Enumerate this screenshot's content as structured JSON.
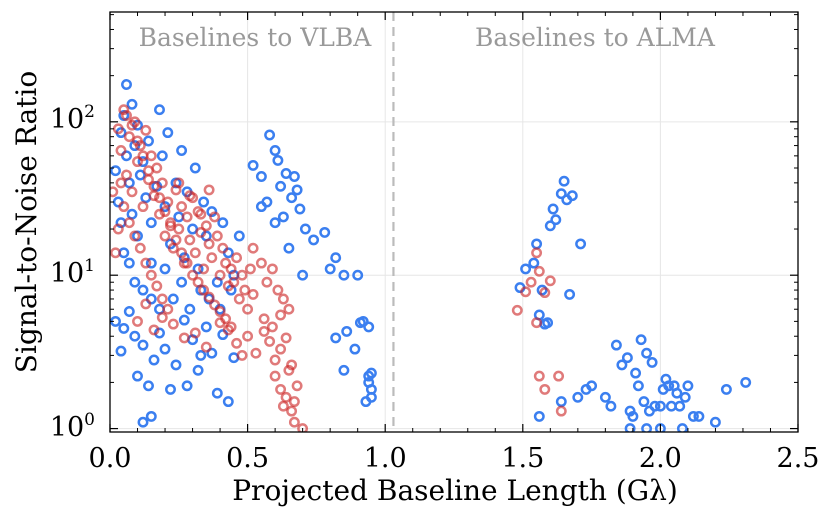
{
  "chart_data": {
    "type": "scatter",
    "xlabel": "Projected Baseline Length (Gλ)",
    "ylabel": "Signal-to-Noise Ratio",
    "xlim": [
      0.0,
      2.5
    ],
    "ylim": [
      0.95,
      520
    ],
    "yscale": "log",
    "x_ticks": [
      0.0,
      0.5,
      1.0,
      1.5,
      2.0,
      2.5
    ],
    "x_tick_labels": [
      "0.0",
      "0.5",
      "1.0",
      "1.5",
      "2.0",
      "2.5"
    ],
    "y_ticks": [
      1,
      10,
      100
    ],
    "y_tick_labels": [
      "10",
      "10",
      "10"
    ],
    "y_tick_exponents": [
      "0",
      "1",
      "2"
    ],
    "grid": true,
    "divider_x": 1.03,
    "region_labels": [
      "Baselines to VLBA",
      "Baselines to ALMA"
    ],
    "series": [
      {
        "name": "blue",
        "color": "#3b7ff0",
        "points": [
          [
            0.02,
            48
          ],
          [
            0.03,
            30
          ],
          [
            0.04,
            85
          ],
          [
            0.05,
            110
          ],
          [
            0.06,
            175
          ],
          [
            0.06,
            60
          ],
          [
            0.07,
            40
          ],
          [
            0.08,
            130
          ],
          [
            0.08,
            25
          ],
          [
            0.09,
            70
          ],
          [
            0.1,
            95
          ],
          [
            0.1,
            18
          ],
          [
            0.11,
            45
          ],
          [
            0.12,
            55
          ],
          [
            0.13,
            32
          ],
          [
            0.14,
            75
          ],
          [
            0.15,
            22
          ],
          [
            0.15,
            12
          ],
          [
            0.17,
            38
          ],
          [
            0.18,
            120
          ],
          [
            0.19,
            60
          ],
          [
            0.2,
            28
          ],
          [
            0.21,
            85
          ],
          [
            0.22,
            16
          ],
          [
            0.24,
            40
          ],
          [
            0.25,
            24
          ],
          [
            0.26,
            65
          ],
          [
            0.27,
            13
          ],
          [
            0.28,
            35
          ],
          [
            0.3,
            20
          ],
          [
            0.31,
            50
          ],
          [
            0.32,
            11
          ],
          [
            0.34,
            30
          ],
          [
            0.35,
            18
          ],
          [
            0.37,
            26
          ],
          [
            0.39,
            9
          ],
          [
            0.41,
            22
          ],
          [
            0.43,
            14
          ],
          [
            0.45,
            10
          ],
          [
            0.47,
            18
          ],
          [
            0.04,
            22
          ],
          [
            0.05,
            14
          ],
          [
            0.07,
            12
          ],
          [
            0.09,
            9
          ],
          [
            0.12,
            8
          ],
          [
            0.15,
            7
          ],
          [
            0.18,
            6
          ],
          [
            0.2,
            11
          ],
          [
            0.23,
            7
          ],
          [
            0.26,
            9
          ],
          [
            0.29,
            6
          ],
          [
            0.33,
            8
          ],
          [
            0.36,
            7
          ],
          [
            0.4,
            6
          ],
          [
            0.44,
            8
          ],
          [
            0.02,
            5
          ],
          [
            0.04,
            3.2
          ],
          [
            0.05,
            4.5
          ],
          [
            0.07,
            5.8
          ],
          [
            0.09,
            4
          ],
          [
            0.1,
            2.2
          ],
          [
            0.12,
            3.5
          ],
          [
            0.14,
            1.9
          ],
          [
            0.15,
            1.2
          ],
          [
            0.16,
            2.8
          ],
          [
            0.18,
            4.2
          ],
          [
            0.2,
            3.3
          ],
          [
            0.22,
            1.8
          ],
          [
            0.24,
            2.6
          ],
          [
            0.27,
            5.1
          ],
          [
            0.28,
            1.9
          ],
          [
            0.3,
            3.8
          ],
          [
            0.32,
            2.4
          ],
          [
            0.35,
            4.6
          ],
          [
            0.37,
            3.1
          ],
          [
            0.39,
            1.7
          ],
          [
            0.41,
            4.1
          ],
          [
            0.43,
            1.5
          ],
          [
            0.45,
            2.9
          ],
          [
            0.12,
            1.1
          ],
          [
            0.33,
            3.0
          ],
          [
            0.52,
            52
          ],
          [
            0.55,
            44
          ],
          [
            0.57,
            30
          ],
          [
            0.58,
            82
          ],
          [
            0.6,
            65
          ],
          [
            0.61,
            56
          ],
          [
            0.62,
            38
          ],
          [
            0.63,
            24
          ],
          [
            0.64,
            46
          ],
          [
            0.65,
            15
          ],
          [
            0.66,
            32
          ],
          [
            0.67,
            44
          ],
          [
            0.68,
            36
          ],
          [
            0.69,
            27
          ],
          [
            0.7,
            10
          ],
          [
            0.71,
            20
          ],
          [
            0.74,
            17
          ],
          [
            0.78,
            19
          ],
          [
            0.8,
            11
          ],
          [
            0.85,
            10
          ],
          [
            0.9,
            10
          ],
          [
            0.82,
            13
          ],
          [
            0.55,
            28
          ],
          [
            0.6,
            22
          ],
          [
            0.82,
            3.9
          ],
          [
            0.86,
            4.3
          ],
          [
            0.89,
            3.3
          ],
          [
            0.91,
            4.9
          ],
          [
            0.92,
            5.0
          ],
          [
            0.93,
            1.5
          ],
          [
            0.94,
            4.6
          ],
          [
            0.94,
            2.2
          ],
          [
            0.95,
            2.3
          ],
          [
            0.95,
            1.8
          ],
          [
            0.95,
            1.6
          ],
          [
            0.94,
            2.0
          ],
          [
            0.85,
            2.4
          ],
          [
            1.49,
            8.3
          ],
          [
            1.51,
            11
          ],
          [
            1.54,
            12
          ],
          [
            1.55,
            16
          ],
          [
            1.56,
            5.5
          ],
          [
            1.57,
            8
          ],
          [
            1.58,
            4.8
          ],
          [
            1.59,
            4.9
          ],
          [
            1.6,
            21
          ],
          [
            1.61,
            27
          ],
          [
            1.62,
            23
          ],
          [
            1.64,
            34
          ],
          [
            1.65,
            41
          ],
          [
            1.66,
            31
          ],
          [
            1.67,
            7.5
          ],
          [
            1.68,
            33
          ],
          [
            1.71,
            16
          ],
          [
            1.56,
            1.2
          ],
          [
            1.64,
            1.5
          ],
          [
            1.7,
            1.6
          ],
          [
            1.73,
            1.8
          ],
          [
            1.75,
            1.9
          ],
          [
            1.8,
            1.6
          ],
          [
            1.82,
            1.4
          ],
          [
            1.84,
            3.5
          ],
          [
            1.86,
            2.6
          ],
          [
            1.88,
            2.9
          ],
          [
            1.89,
            1.3
          ],
          [
            1.9,
            1.2
          ],
          [
            1.91,
            2.3
          ],
          [
            1.92,
            1.9
          ],
          [
            1.93,
            3.8
          ],
          [
            1.94,
            1.5
          ],
          [
            1.95,
            3.1
          ],
          [
            1.96,
            1.3
          ],
          [
            1.97,
            2.7
          ],
          [
            1.98,
            1.4
          ],
          [
            2.0,
            1.4
          ],
          [
            2.01,
            1.8
          ],
          [
            2.02,
            2.1
          ],
          [
            2.03,
            1.9
          ],
          [
            2.04,
            1.4
          ],
          [
            2.05,
            1.9
          ],
          [
            2.06,
            1.7
          ],
          [
            2.07,
            1.4
          ],
          [
            2.09,
            1.6
          ],
          [
            2.1,
            1.9
          ],
          [
            2.12,
            1.2
          ],
          [
            2.14,
            1.2
          ],
          [
            2.2,
            1.1
          ],
          [
            2.24,
            1.8
          ],
          [
            2.31,
            2.0
          ],
          [
            1.89,
            1.0
          ],
          [
            2.0,
            1.0
          ],
          [
            2.08,
            1.0
          ],
          [
            1.95,
            1.0
          ]
        ]
      },
      {
        "name": "red",
        "color": "#cc2222",
        "points": [
          [
            0.03,
            90
          ],
          [
            0.04,
            65
          ],
          [
            0.05,
            120
          ],
          [
            0.06,
            45
          ],
          [
            0.07,
            80
          ],
          [
            0.08,
            35
          ],
          [
            0.09,
            100
          ],
          [
            0.1,
            55
          ],
          [
            0.11,
            70
          ],
          [
            0.12,
            28
          ],
          [
            0.13,
            88
          ],
          [
            0.14,
            42
          ],
          [
            0.15,
            60
          ],
          [
            0.16,
            33
          ],
          [
            0.17,
            50
          ],
          [
            0.18,
            25
          ],
          [
            0.19,
            40
          ],
          [
            0.2,
            18
          ],
          [
            0.21,
            30
          ],
          [
            0.22,
            22
          ],
          [
            0.23,
            15
          ],
          [
            0.24,
            36
          ],
          [
            0.25,
            20
          ],
          [
            0.26,
            28
          ],
          [
            0.27,
            12
          ],
          [
            0.28,
            24
          ],
          [
            0.29,
            17
          ],
          [
            0.3,
            32
          ],
          [
            0.31,
            14
          ],
          [
            0.32,
            26
          ],
          [
            0.33,
            19
          ],
          [
            0.34,
            11
          ],
          [
            0.35,
            21
          ],
          [
            0.36,
            16
          ],
          [
            0.37,
            13
          ],
          [
            0.38,
            24
          ],
          [
            0.39,
            18
          ],
          [
            0.4,
            10
          ],
          [
            0.41,
            15
          ],
          [
            0.42,
            12
          ],
          [
            0.43,
            8.5
          ],
          [
            0.44,
            11
          ],
          [
            0.45,
            9
          ],
          [
            0.46,
            13
          ],
          [
            0.47,
            7
          ],
          [
            0.48,
            10
          ],
          [
            0.49,
            8
          ],
          [
            0.5,
            6
          ],
          [
            0.51,
            11
          ],
          [
            0.52,
            7.5
          ],
          [
            0.06,
            110
          ],
          [
            0.08,
            95
          ],
          [
            0.1,
            75
          ],
          [
            0.12,
            60
          ],
          [
            0.14,
            48
          ],
          [
            0.16,
            38
          ],
          [
            0.18,
            32
          ],
          [
            0.2,
            26
          ],
          [
            0.22,
            21
          ],
          [
            0.24,
            17
          ],
          [
            0.26,
            14
          ],
          [
            0.28,
            12
          ],
          [
            0.3,
            10
          ],
          [
            0.32,
            9
          ],
          [
            0.34,
            8
          ],
          [
            0.36,
            7.2
          ],
          [
            0.38,
            6.4
          ],
          [
            0.4,
            5.8
          ],
          [
            0.42,
            5.2
          ],
          [
            0.44,
            4.6
          ],
          [
            0.04,
            40
          ],
          [
            0.05,
            28
          ],
          [
            0.07,
            22
          ],
          [
            0.09,
            18
          ],
          [
            0.11,
            15
          ],
          [
            0.13,
            12
          ],
          [
            0.15,
            10
          ],
          [
            0.17,
            8.5
          ],
          [
            0.19,
            7
          ],
          [
            0.21,
            6
          ],
          [
            0.1,
            5
          ],
          [
            0.13,
            6.5
          ],
          [
            0.16,
            4.4
          ],
          [
            0.19,
            5.3
          ],
          [
            0.23,
            4.8
          ],
          [
            0.27,
            3.9
          ],
          [
            0.31,
            4.2
          ],
          [
            0.35,
            3.4
          ],
          [
            0.4,
            4.9
          ],
          [
            0.43,
            4.4
          ],
          [
            0.46,
            3.6
          ],
          [
            0.48,
            3.0
          ],
          [
            0.5,
            4.0
          ],
          [
            0.53,
            3.1
          ],
          [
            0.56,
            4.3
          ],
          [
            0.58,
            3.7
          ],
          [
            0.6,
            2.8
          ],
          [
            0.62,
            3.3
          ],
          [
            0.64,
            3.9
          ],
          [
            0.66,
            2.6
          ],
          [
            0.6,
            2.2
          ],
          [
            0.62,
            1.8
          ],
          [
            0.64,
            1.6
          ],
          [
            0.65,
            2.4
          ],
          [
            0.66,
            1.3
          ],
          [
            0.67,
            1.1
          ],
          [
            0.68,
            1.9
          ],
          [
            0.63,
            1.4
          ],
          [
            0.67,
            1.5
          ],
          [
            0.7,
            1.0
          ],
          [
            0.52,
            15
          ],
          [
            0.55,
            12
          ],
          [
            0.57,
            9
          ],
          [
            0.59,
            11
          ],
          [
            0.61,
            8
          ],
          [
            0.63,
            7
          ],
          [
            0.65,
            6
          ],
          [
            0.56,
            5.2
          ],
          [
            0.59,
            4.6
          ],
          [
            0.62,
            5.5
          ],
          [
            0.02,
            14
          ],
          [
            0.03,
            20
          ],
          [
            0.01,
            35
          ],
          [
            0.33,
            25
          ],
          [
            0.36,
            36
          ],
          [
            0.25,
            40
          ],
          [
            0.29,
            33
          ],
          [
            1.48,
            5.9
          ],
          [
            1.51,
            7.8
          ],
          [
            1.53,
            9
          ],
          [
            1.55,
            14
          ],
          [
            1.56,
            10.6
          ],
          [
            1.58,
            7.7
          ],
          [
            1.6,
            9.2
          ],
          [
            1.55,
            4.9
          ],
          [
            1.58,
            1.8
          ],
          [
            1.63,
            2.2
          ],
          [
            1.64,
            1.3
          ],
          [
            1.56,
            2.2
          ]
        ]
      }
    ]
  }
}
